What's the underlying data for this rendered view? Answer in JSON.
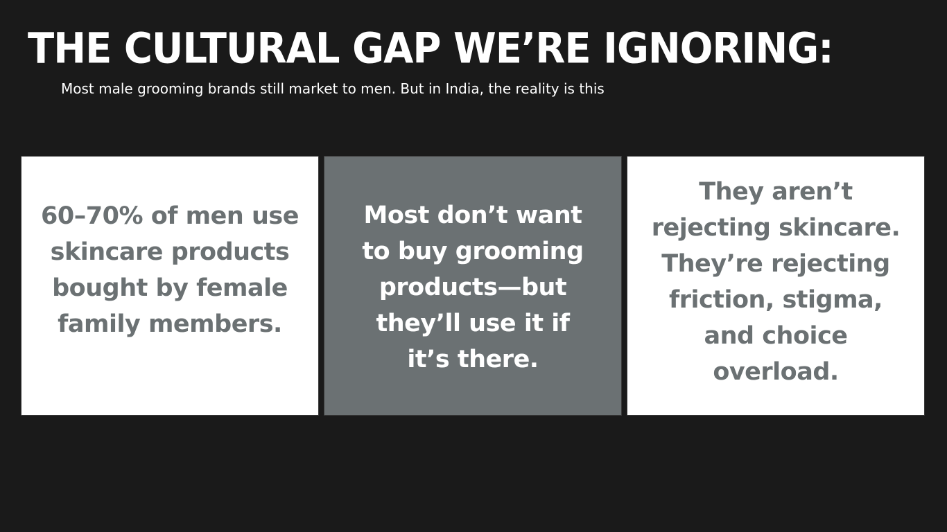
{
  "slide": {
    "title": "THE CULTURAL GAP WE’RE IGNORING:",
    "subtitle": "Most male grooming brands still market to men. But in India, the reality is this",
    "cards": [
      {
        "text": "60–70% of men use skincare products bought by female family members."
      },
      {
        "text": "Most don’t want to buy grooming products—but they’ll use it if it’s there."
      },
      {
        "text": "They aren’t rejecting skincare. They’re rejecting friction, stigma, and choice overload."
      }
    ]
  },
  "colors": {
    "background": "#1a1a1a",
    "title": "#ffffff",
    "card_light": "#ffffff",
    "card_dark": "#6b7173",
    "card_light_text": "#6b7173",
    "card_dark_text": "#ffffff"
  }
}
